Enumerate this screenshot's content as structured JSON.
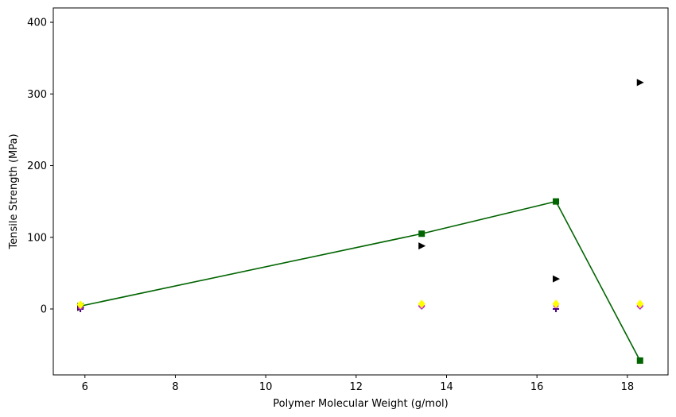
{
  "chart_data": {
    "type": "scatter",
    "title": "",
    "xlabel": "Polymer Molecular Weight (g/mol)",
    "ylabel": "Tensile Strength (MPa)",
    "xlim": [
      5.3,
      18.9
    ],
    "ylim": [
      -92,
      420
    ],
    "xticks": [
      6,
      8,
      10,
      12,
      14,
      16,
      18
    ],
    "yticks": [
      0,
      100,
      200,
      300,
      400
    ],
    "grid": false,
    "legend": "none",
    "series": [
      {
        "marker": "square",
        "line": true,
        "color": "#006400",
        "x": [
          5.9,
          13.45,
          16.42,
          18.28
        ],
        "y": [
          4,
          105,
          150,
          -72
        ]
      },
      {
        "marker": "triangle-right",
        "line": false,
        "color": "#000000",
        "x": [
          5.9,
          13.45,
          16.42,
          18.28
        ],
        "y": [
          2,
          88,
          42,
          316
        ]
      },
      {
        "marker": "plus",
        "line": false,
        "color": "#4b0082",
        "x": [
          5.9,
          13.45,
          16.42,
          18.28
        ],
        "y": [
          0,
          4,
          0,
          4
        ]
      },
      {
        "marker": "circle",
        "line": false,
        "color": "#cc33cc",
        "x": [
          5.9,
          13.45,
          16.42,
          18.28
        ],
        "y": [
          3,
          4,
          5,
          4
        ]
      },
      {
        "marker": "diamond",
        "line": false,
        "color": "#ffff00",
        "x": [
          5.9,
          13.45,
          16.42,
          18.28
        ],
        "y": [
          6,
          7,
          7,
          7
        ]
      }
    ]
  }
}
